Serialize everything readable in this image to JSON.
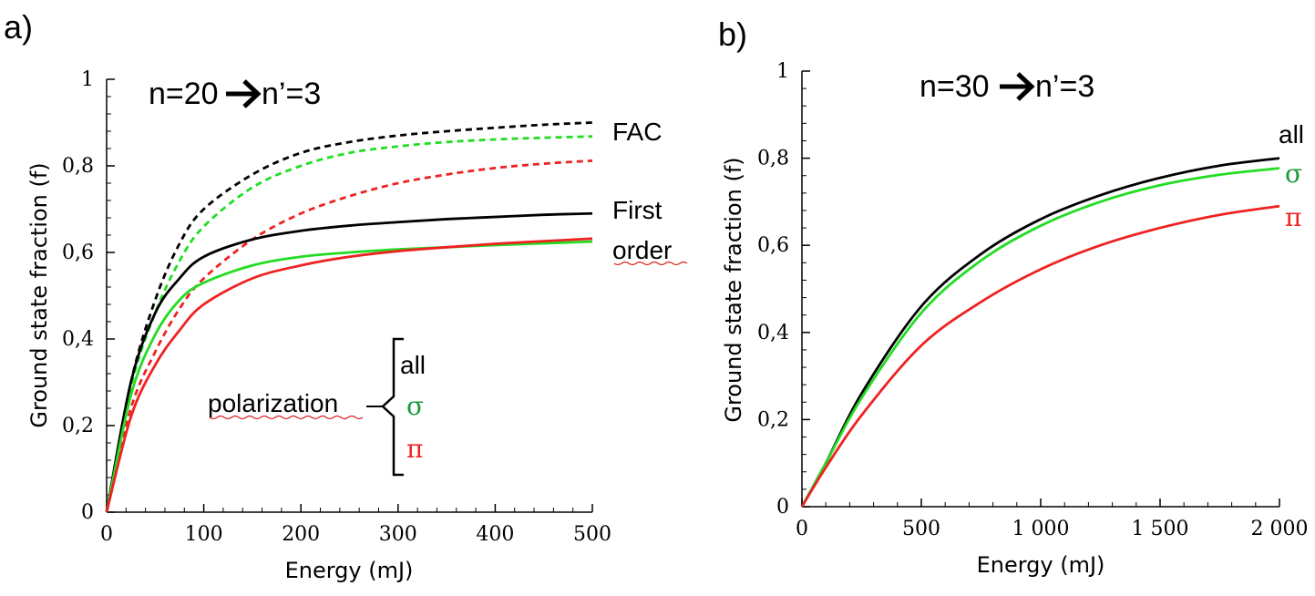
{
  "colors": {
    "black": "#000000",
    "green": "#22dd22",
    "red": "#ee2222",
    "sigma_text": "#1a9a3a"
  },
  "chart_data": [
    {
      "panel_label": "a)",
      "type": "line",
      "title_lhs": "n=20",
      "title_rhs": "n’=3",
      "xlabel": "Energy (mJ)",
      "ylabel": "Ground state fraction (f)",
      "xlim": [
        0,
        500
      ],
      "ylim": [
        0,
        1
      ],
      "xticks": [
        0,
        100,
        200,
        300,
        400,
        500
      ],
      "xtick_labels": [
        "0",
        "100",
        "200",
        "300",
        "400",
        "500"
      ],
      "yticks": [
        0,
        0.2,
        0.4,
        0.6,
        0.8,
        1
      ],
      "ytick_labels": [
        "0",
        "0,2",
        "0,4",
        "0,6",
        "0,8",
        "1"
      ],
      "series": [
        {
          "name": "FAC all",
          "color": "black",
          "dash": true,
          "x": [
            0,
            25,
            50,
            75,
            100,
            150,
            200,
            250,
            300,
            350,
            400,
            450,
            500
          ],
          "y": [
            0,
            0.3,
            0.49,
            0.62,
            0.7,
            0.78,
            0.83,
            0.855,
            0.87,
            0.88,
            0.888,
            0.895,
            0.9
          ]
        },
        {
          "name": "FAC σ",
          "color": "green",
          "dash": true,
          "x": [
            0,
            25,
            50,
            75,
            100,
            150,
            200,
            250,
            300,
            350,
            400,
            450,
            500
          ],
          "y": [
            0,
            0.29,
            0.46,
            0.58,
            0.66,
            0.75,
            0.8,
            0.83,
            0.845,
            0.855,
            0.861,
            0.865,
            0.868
          ]
        },
        {
          "name": "FAC π",
          "color": "red",
          "dash": true,
          "x": [
            0,
            25,
            50,
            75,
            100,
            150,
            200,
            250,
            300,
            350,
            400,
            450,
            500
          ],
          "y": [
            0,
            0.24,
            0.37,
            0.47,
            0.54,
            0.63,
            0.69,
            0.73,
            0.76,
            0.78,
            0.795,
            0.805,
            0.812
          ]
        },
        {
          "name": "First order all",
          "color": "black",
          "dash": false,
          "x": [
            0,
            25,
            50,
            75,
            100,
            150,
            200,
            250,
            300,
            350,
            400,
            450,
            500
          ],
          "y": [
            0,
            0.3,
            0.46,
            0.54,
            0.59,
            0.63,
            0.65,
            0.662,
            0.67,
            0.677,
            0.682,
            0.687,
            0.69
          ]
        },
        {
          "name": "First order σ",
          "color": "green",
          "dash": false,
          "x": [
            0,
            25,
            50,
            75,
            100,
            150,
            200,
            250,
            300,
            350,
            400,
            450,
            500
          ],
          "y": [
            0,
            0.27,
            0.41,
            0.49,
            0.53,
            0.57,
            0.59,
            0.6,
            0.607,
            0.612,
            0.617,
            0.621,
            0.625
          ]
        },
        {
          "name": "First order π",
          "color": "red",
          "dash": false,
          "x": [
            0,
            25,
            50,
            75,
            100,
            150,
            200,
            250,
            300,
            350,
            400,
            450,
            500
          ],
          "y": [
            0,
            0.22,
            0.34,
            0.42,
            0.48,
            0.54,
            0.57,
            0.59,
            0.603,
            0.612,
            0.62,
            0.626,
            0.632
          ]
        }
      ],
      "annotations": {
        "fac": "FAC",
        "first": "First",
        "order": "order",
        "polarization": "polarization"
      },
      "legend": {
        "all": "all",
        "sigma": "σ",
        "pi": "π"
      }
    },
    {
      "panel_label": "b)",
      "type": "line",
      "title_lhs": "n=30",
      "title_rhs": "n’=3",
      "xlabel": "Energy (mJ)",
      "ylabel": "Ground state fraction (f)",
      "xlim": [
        0,
        2000
      ],
      "ylim": [
        0,
        1
      ],
      "xticks": [
        0,
        500,
        1000,
        1500,
        2000
      ],
      "xtick_labels": [
        "0",
        "500",
        "1 000",
        "1 500",
        "2 000"
      ],
      "yticks": [
        0,
        0.2,
        0.4,
        0.6,
        0.8,
        1
      ],
      "ytick_labels": [
        "0",
        "0,2",
        "0,4",
        "0,6",
        "0,8",
        "1"
      ],
      "series": [
        {
          "name": "all",
          "color": "black",
          "dash": false,
          "x": [
            0,
            100,
            250,
            500,
            750,
            1000,
            1250,
            1500,
            1750,
            2000
          ],
          "y": [
            0,
            0.1,
            0.26,
            0.46,
            0.58,
            0.66,
            0.715,
            0.755,
            0.783,
            0.8
          ]
        },
        {
          "name": "σ",
          "color": "green",
          "dash": false,
          "x": [
            0,
            100,
            250,
            500,
            750,
            1000,
            1250,
            1500,
            1750,
            2000
          ],
          "y": [
            0,
            0.1,
            0.25,
            0.445,
            0.565,
            0.645,
            0.7,
            0.738,
            0.762,
            0.777
          ]
        },
        {
          "name": "π",
          "color": "red",
          "dash": false,
          "x": [
            0,
            100,
            250,
            500,
            750,
            1000,
            1250,
            1500,
            1750,
            2000
          ],
          "y": [
            0,
            0.09,
            0.21,
            0.37,
            0.47,
            0.545,
            0.6,
            0.64,
            0.67,
            0.69
          ]
        }
      ],
      "legend": {
        "all": "all",
        "sigma": "σ",
        "pi": "π"
      }
    }
  ]
}
